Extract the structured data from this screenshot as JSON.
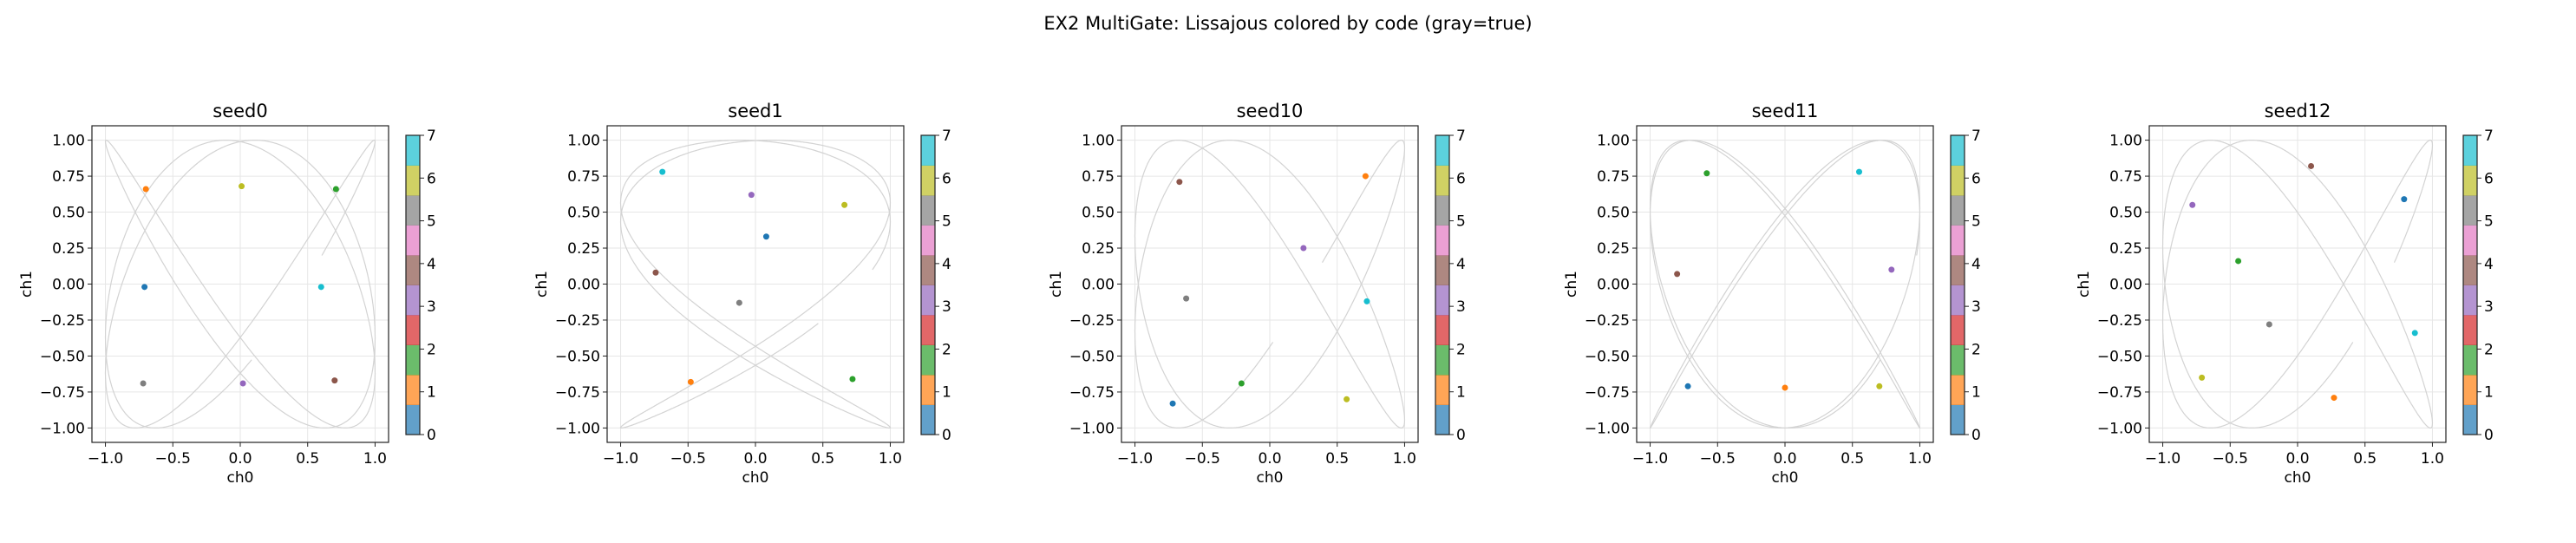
{
  "chart_data": {
    "type": "scatter",
    "title": "EX2 MultiGate: Lissajous colored by code (gray=true)",
    "colormap": [
      "#1f77b4",
      "#ff7f0e",
      "#2ca02c",
      "#d62728",
      "#9467bd",
      "#8c564b",
      "#e377c2",
      "#7f7f7f",
      "#bcbd22",
      "#17becf"
    ],
    "true_curve_color": "#d3d3d3",
    "grid": true,
    "colorbar": {
      "range": [
        0,
        7
      ],
      "ticks": [
        "0",
        "1",
        "2",
        "3",
        "4",
        "5",
        "6",
        "7"
      ]
    },
    "xlim": [
      -1.1,
      1.1
    ],
    "ylim": [
      -1.1,
      1.1
    ],
    "xticks": [
      "−1.0",
      "−0.5",
      "0.0",
      "0.5",
      "1.0"
    ],
    "yticks": [
      "−1.00",
      "−0.75",
      "−0.50",
      "−0.25",
      "0.00",
      "0.25",
      "0.50",
      "0.75",
      "1.00"
    ],
    "panels": [
      {
        "title": "seed0",
        "xlabel": "ch0",
        "ylabel": "ch1",
        "points": [
          {
            "code": 0,
            "x": -0.71,
            "y": -0.02
          },
          {
            "code": 1,
            "x": -0.7,
            "y": 0.66
          },
          {
            "code": 2,
            "x": 0.71,
            "y": 0.66
          },
          {
            "code": 3,
            "x": 0.02,
            "y": -0.69
          },
          {
            "code": 4,
            "x": 0.7,
            "y": -0.67
          },
          {
            "code": 5,
            "x": -0.72,
            "y": -0.69
          },
          {
            "code": 6,
            "x": 0.01,
            "y": 0.68
          },
          {
            "code": 7,
            "x": 0.6,
            "y": -0.02
          }
        ]
      },
      {
        "title": "seed1",
        "xlabel": "ch0",
        "ylabel": "ch1",
        "points": [
          {
            "code": 0,
            "x": 0.08,
            "y": 0.33
          },
          {
            "code": 1,
            "x": -0.48,
            "y": -0.68
          },
          {
            "code": 2,
            "x": 0.72,
            "y": -0.66
          },
          {
            "code": 3,
            "x": -0.03,
            "y": 0.62
          },
          {
            "code": 4,
            "x": -0.74,
            "y": 0.08
          },
          {
            "code": 5,
            "x": -0.12,
            "y": -0.13
          },
          {
            "code": 6,
            "x": 0.66,
            "y": 0.55
          },
          {
            "code": 7,
            "x": -0.69,
            "y": 0.78
          }
        ]
      },
      {
        "title": "seed10",
        "xlabel": "ch0",
        "ylabel": "ch1",
        "points": [
          {
            "code": 0,
            "x": -0.72,
            "y": -0.83
          },
          {
            "code": 1,
            "x": 0.71,
            "y": 0.75
          },
          {
            "code": 2,
            "x": -0.21,
            "y": -0.69
          },
          {
            "code": 3,
            "x": 0.25,
            "y": 0.25
          },
          {
            "code": 4,
            "x": -0.67,
            "y": 0.71
          },
          {
            "code": 5,
            "x": -0.62,
            "y": -0.1
          },
          {
            "code": 6,
            "x": 0.57,
            "y": -0.8
          },
          {
            "code": 7,
            "x": 0.72,
            "y": -0.12
          }
        ]
      },
      {
        "title": "seed11",
        "xlabel": "ch0",
        "ylabel": "ch1",
        "points": [
          {
            "code": 0,
            "x": -0.72,
            "y": -0.71
          },
          {
            "code": 1,
            "x": 0.0,
            "y": -0.72
          },
          {
            "code": 2,
            "x": -0.58,
            "y": 0.77
          },
          {
            "code": 3,
            "x": 0.79,
            "y": 0.1
          },
          {
            "code": 4,
            "x": -0.8,
            "y": 0.07
          },
          {
            "code": 6,
            "x": 0.7,
            "y": -0.71
          },
          {
            "code": 7,
            "x": 0.55,
            "y": 0.78
          }
        ]
      },
      {
        "title": "seed12",
        "xlabel": "ch0",
        "ylabel": "ch1",
        "points": [
          {
            "code": 0,
            "x": 0.79,
            "y": 0.59
          },
          {
            "code": 1,
            "x": 0.27,
            "y": -0.79
          },
          {
            "code": 2,
            "x": -0.44,
            "y": 0.16
          },
          {
            "code": 3,
            "x": -0.78,
            "y": 0.55
          },
          {
            "code": 4,
            "x": 0.1,
            "y": 0.82
          },
          {
            "code": 5,
            "x": -0.21,
            "y": -0.28
          },
          {
            "code": 6,
            "x": -0.71,
            "y": -0.65
          },
          {
            "code": 7,
            "x": 0.87,
            "y": -0.34
          }
        ]
      }
    ]
  }
}
